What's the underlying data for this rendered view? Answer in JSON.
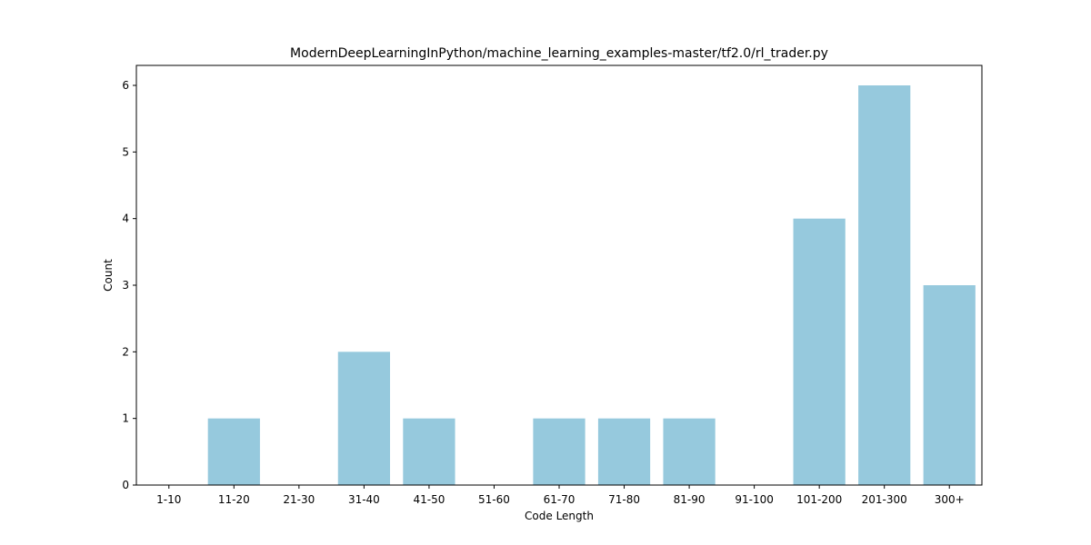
{
  "chart_data": {
    "type": "bar",
    "title": "ModernDeepLearningInPython/machine_learning_examples-master/tf2.0/rl_trader.py",
    "xlabel": "Code Length",
    "ylabel": "Count",
    "categories": [
      "1-10",
      "11-20",
      "21-30",
      "31-40",
      "41-50",
      "51-60",
      "61-70",
      "71-80",
      "81-90",
      "91-100",
      "101-200",
      "201-300",
      "300+"
    ],
    "values": [
      0,
      1,
      0,
      2,
      1,
      0,
      1,
      1,
      1,
      0,
      4,
      6,
      3
    ],
    "yticks": [
      0,
      1,
      2,
      3,
      4,
      5,
      6
    ],
    "ylim": [
      0,
      6.3
    ],
    "bar_color": "#96c9dd",
    "grid": false,
    "legend": "none"
  }
}
